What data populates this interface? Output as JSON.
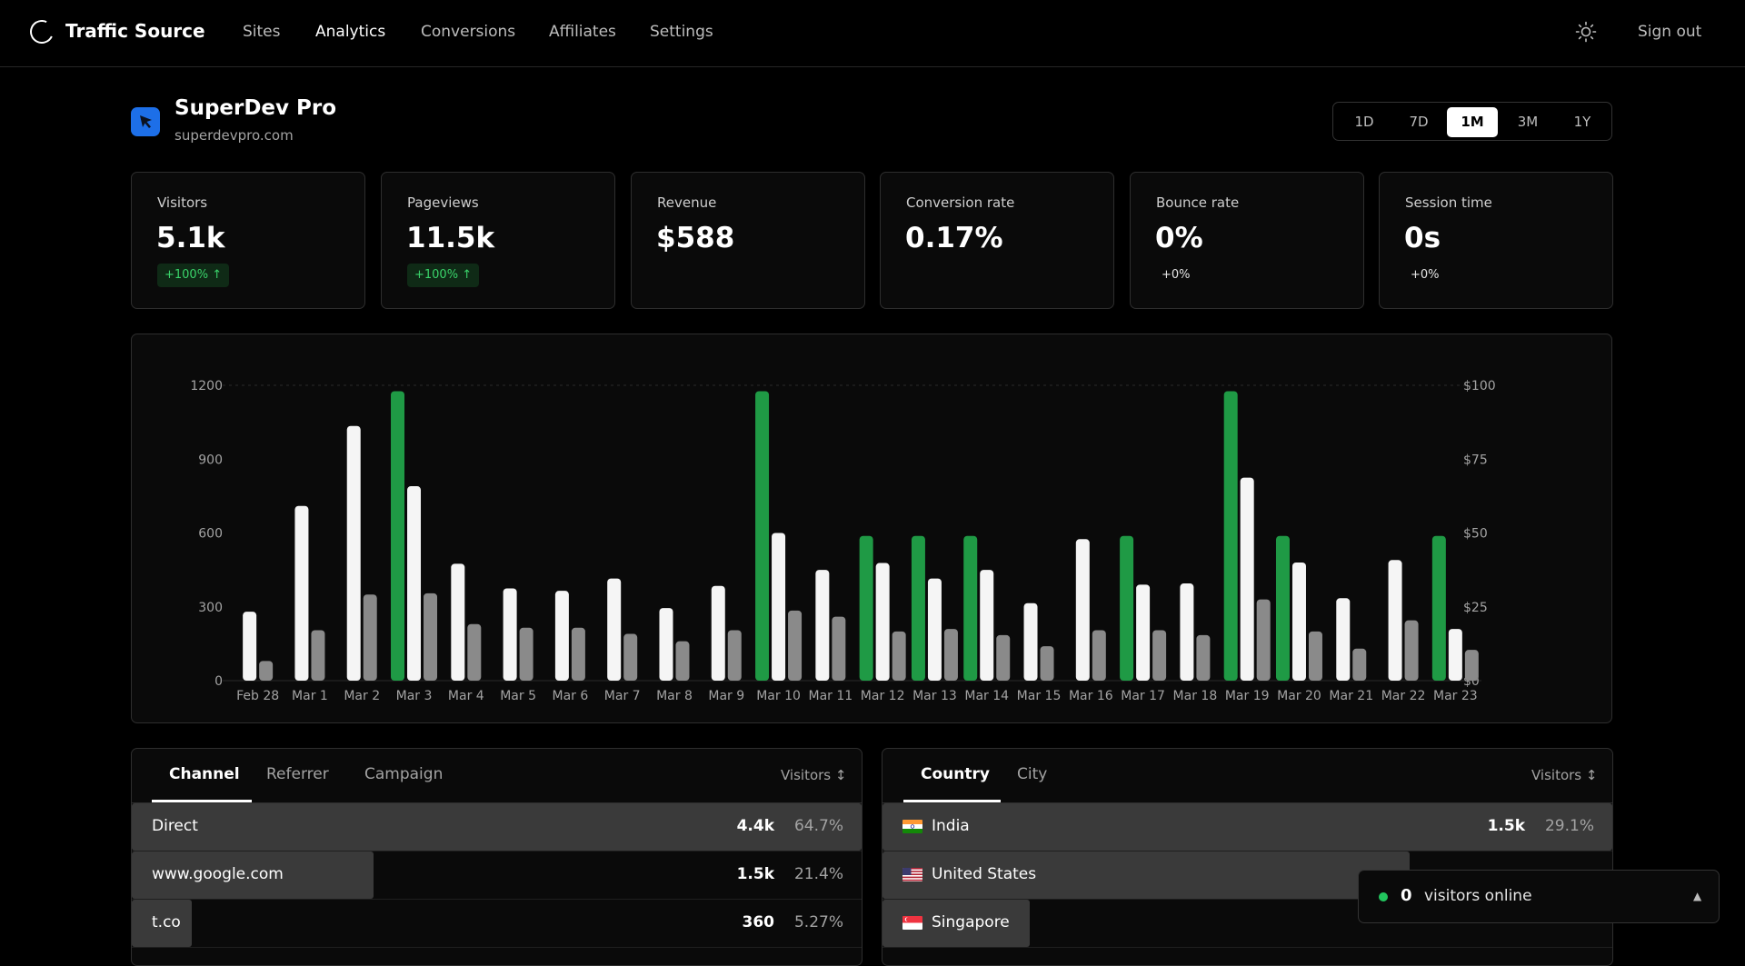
{
  "app": {
    "brand": "Traffic Source",
    "nav": [
      "Sites",
      "Analytics",
      "Conversions",
      "Affiliates",
      "Settings"
    ],
    "active_nav": "Analytics",
    "sign_out": "Sign out"
  },
  "site": {
    "name": "SuperDev Pro",
    "domain": "superdevpro.com",
    "icon_color": "#1d6fe8"
  },
  "ranges": [
    "1D",
    "7D",
    "1M",
    "3M",
    "1Y"
  ],
  "active_range": "1M",
  "kpis": [
    {
      "label": "Visitors",
      "value": "5.1k",
      "delta": "+100% ↑",
      "delta_type": "positive"
    },
    {
      "label": "Pageviews",
      "value": "11.5k",
      "delta": "+100% ↑",
      "delta_type": "positive"
    },
    {
      "label": "Revenue",
      "value": "$588",
      "delta": "",
      "delta_type": "none"
    },
    {
      "label": "Conversion rate",
      "value": "0.17%",
      "delta": "",
      "delta_type": "none"
    },
    {
      "label": "Bounce rate",
      "value": "0%",
      "delta": "+0%",
      "delta_type": "neutral"
    },
    {
      "label": "Session time",
      "value": "0s",
      "delta": "+0%",
      "delta_type": "neutral"
    }
  ],
  "chart_data": {
    "type": "bar",
    "categories": [
      "Feb 28",
      "Mar 1",
      "Mar 2",
      "Mar 3",
      "Mar 4",
      "Mar 5",
      "Mar 6",
      "Mar 7",
      "Mar 8",
      "Mar 9",
      "Mar 10",
      "Mar 11",
      "Mar 12",
      "Mar 13",
      "Mar 14",
      "Mar 15",
      "Mar 16",
      "Mar 17",
      "Mar 18",
      "Mar 19",
      "Mar 20",
      "Mar 21",
      "Mar 22",
      "Mar 23"
    ],
    "y_ticks": [
      "0",
      "300",
      "600",
      "900",
      "1200"
    ],
    "y2_ticks": [
      "$0",
      "$25",
      "$50",
      "$75",
      "$100"
    ],
    "ylim": [
      0,
      1200
    ],
    "y2lim": [
      0,
      100
    ],
    "series": [
      {
        "axis": "right",
        "color": "#1f9a45",
        "values": [
          0,
          0,
          0,
          98,
          0,
          0,
          0,
          0,
          0,
          0,
          98,
          0,
          49,
          49,
          49,
          0,
          0,
          49,
          0,
          98,
          49,
          0,
          0,
          49
        ]
      },
      {
        "axis": "left",
        "color": "#f5f5f5",
        "values": [
          280,
          710,
          1035,
          790,
          475,
          375,
          365,
          415,
          295,
          385,
          600,
          450,
          478,
          415,
          450,
          315,
          575,
          390,
          395,
          825,
          480,
          335,
          490,
          210
        ]
      },
      {
        "axis": "left",
        "color": "#8a8a8a",
        "values": [
          80,
          205,
          350,
          355,
          230,
          215,
          215,
          190,
          160,
          205,
          285,
          260,
          200,
          210,
          185,
          140,
          205,
          205,
          185,
          330,
          200,
          130,
          245,
          125
        ]
      }
    ],
    "grid": "dashed top line only",
    "legend": "none"
  },
  "channels": {
    "tabs": [
      "Channel",
      "Referrer",
      "Campaign"
    ],
    "active_tab": "Channel",
    "sort_label": "Visitors ↕",
    "rows": [
      {
        "label": "Direct",
        "value": "4.4k",
        "pct": "64.7%",
        "share": 1.0
      },
      {
        "label": "www.google.com",
        "value": "1.5k",
        "pct": "21.4%",
        "share": 0.33
      },
      {
        "label": "t.co",
        "value": "360",
        "pct": "5.27%",
        "share": 0.08
      }
    ]
  },
  "locations": {
    "tabs": [
      "Country",
      "City"
    ],
    "active_tab": "Country",
    "sort_label": "Visitors ↕",
    "rows": [
      {
        "label": "India",
        "value": "1.5k",
        "pct": "29.1%",
        "flag": "india",
        "share": 1.0
      },
      {
        "label": "United States",
        "value": "",
        "pct": "",
        "flag": "usa",
        "share": 0.72
      },
      {
        "label": "Singapore",
        "value": "",
        "pct": "",
        "flag": "singapore",
        "share": 0.2
      }
    ]
  },
  "online": {
    "count": "0",
    "label": "visitors online",
    "status_color": "#22c55e"
  }
}
